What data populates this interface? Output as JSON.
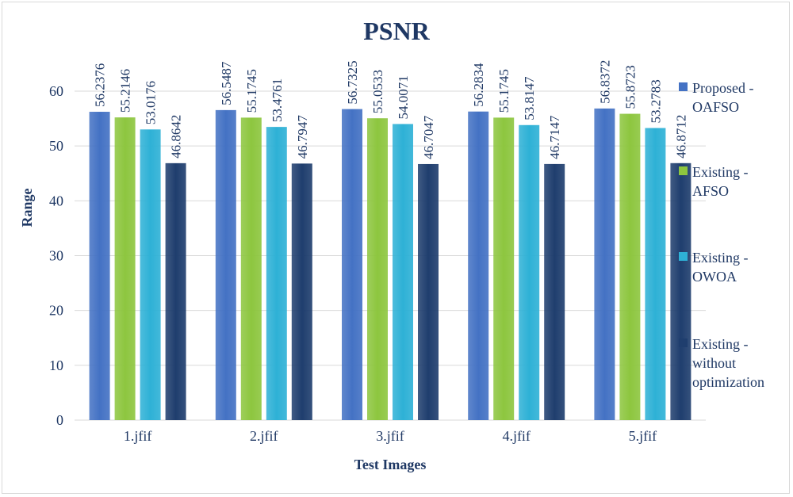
{
  "chart_data": {
    "type": "bar",
    "title": "PSNR",
    "xlabel": "Test Images",
    "ylabel": "Range",
    "ylim": [
      0,
      60
    ],
    "yticks": [
      0,
      10,
      20,
      30,
      40,
      50,
      60
    ],
    "grid": true,
    "legend_position": "right",
    "categories": [
      "1.jfif",
      "2.jfif",
      "3.jfif",
      "4.jfif",
      "5.jfif"
    ],
    "series": [
      {
        "name": "Proposed - OAFSO",
        "legend_lines": [
          "Proposed -",
          "OAFSO"
        ],
        "color": "#4472c4",
        "values": [
          56.2376,
          56.5487,
          56.7325,
          56.2834,
          56.8372
        ],
        "labels": [
          "56.2376",
          "56.5487",
          "56.7325",
          "56.2834",
          "56.8372"
        ]
      },
      {
        "name": "Existing - AFSO",
        "legend_lines": [
          "Existing -",
          "AFSO"
        ],
        "color": "#8dc63f",
        "values": [
          55.2146,
          55.1745,
          55.0533,
          55.1745,
          55.8723
        ],
        "labels": [
          "55.2146",
          "55.1745",
          "55.0533",
          "55.1745",
          "55.8723"
        ]
      },
      {
        "name": "Existing - OWOA",
        "legend_lines": [
          "Existing -",
          "OWOA"
        ],
        "color": "#2eb1d6",
        "values": [
          53.0176,
          53.4761,
          54.0071,
          53.8147,
          53.2783
        ],
        "labels": [
          "53.0176",
          "53.4761",
          "54.0071",
          "53.8147",
          "53.2783"
        ]
      },
      {
        "name": "Existing - without optimization",
        "legend_lines": [
          "Existing -",
          "without",
          "optimization"
        ],
        "color": "#1f3e6e",
        "values": [
          46.8642,
          46.7947,
          46.7047,
          46.7147,
          46.8712
        ],
        "labels": [
          "46.8642",
          "46.7947",
          "46.7047",
          "46.7147",
          "46.8712"
        ]
      }
    ]
  }
}
